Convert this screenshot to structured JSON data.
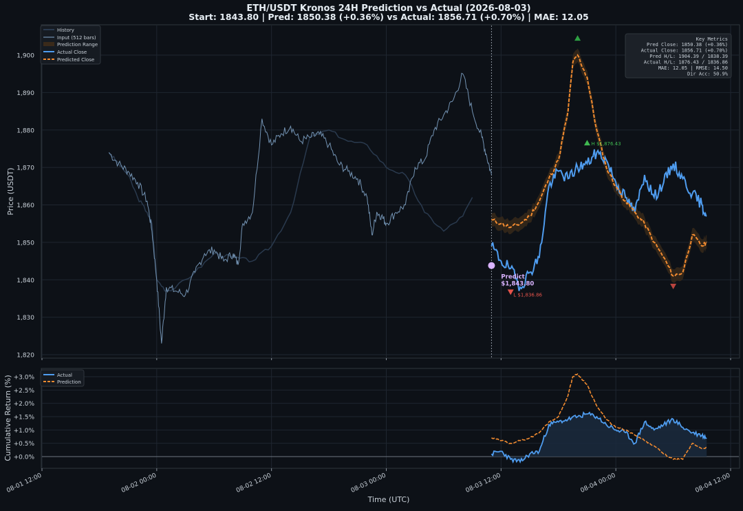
{
  "chart_data": [
    {
      "type": "line",
      "title": "ETH/USDT  Kronos 24H Prediction vs Actual (2026-08-03)",
      "subtitle": "Start: 1843.80  |  Pred: 1850.38 (+0.36%)  vs  Actual: 1856.71 (+0.70%)  |  MAE: 12.05",
      "ylabel": "Price (USDT)",
      "ylim": [
        1819,
        1905
      ],
      "yticks": [
        1820,
        1830,
        1840,
        1850,
        1860,
        1870,
        1880,
        1890,
        1900
      ],
      "ytick_labels": [
        "1,820",
        "1,830",
        "1,840",
        "1,850",
        "1,860",
        "1,870",
        "1,880",
        "1,890",
        "1,900"
      ],
      "grid": true,
      "legend": "top-left",
      "series": [
        {
          "name": "History",
          "color": "#2a3a4e",
          "x": [
            "2026-08-01 19:00",
            "2026-08-01 20:00",
            "2026-08-01 21:00",
            "2026-08-01 22:00",
            "2026-08-01 23:00",
            "2026-08-01 23:30",
            "2026-08-02 00:00",
            "2026-08-02 01:00",
            "2026-08-02 02:00",
            "2026-08-02 04:00",
            "2026-08-02 06:00",
            "2026-08-02 08:00",
            "2026-08-02 10:00",
            "2026-08-02 12:00",
            "2026-08-02 14:00",
            "2026-08-02 16:00",
            "2026-08-02 18:00",
            "2026-08-02 20:00",
            "2026-08-02 22:00",
            "2026-08-03 00:00",
            "2026-08-03 02:00",
            "2026-08-03 04:00",
            "2026-08-03 06:00",
            "2026-08-03 08:00",
            "2026-08-03 09:00"
          ],
          "values": [
            1874,
            1871,
            1868,
            1862,
            1858,
            1855,
            1840,
            1837,
            1838,
            1842,
            1847,
            1846,
            1845,
            1849,
            1858,
            1878,
            1880,
            1877,
            1876,
            1870,
            1868,
            1858,
            1853,
            1857,
            1862
          ]
        },
        {
          "name": "Input (512 bars)",
          "color": "#7393b3",
          "x": [
            "2026-08-01 19:00",
            "2026-08-01 20:00",
            "2026-08-01 21:00",
            "2026-08-01 22:00",
            "2026-08-01 23:00",
            "2026-08-01 23:30",
            "2026-08-02 00:00",
            "2026-08-02 00:30",
            "2026-08-02 01:00",
            "2026-08-02 02:00",
            "2026-08-02 03:00",
            "2026-08-02 04:00",
            "2026-08-02 05:00",
            "2026-08-02 06:00",
            "2026-08-02 07:00",
            "2026-08-02 08:00",
            "2026-08-02 08:30",
            "2026-08-02 09:00",
            "2026-08-02 10:00",
            "2026-08-02 11:00",
            "2026-08-02 12:00",
            "2026-08-02 13:00",
            "2026-08-02 14:00",
            "2026-08-02 15:00",
            "2026-08-02 16:00",
            "2026-08-02 17:00",
            "2026-08-02 18:00",
            "2026-08-02 19:00",
            "2026-08-02 20:00",
            "2026-08-02 21:00",
            "2026-08-02 22:00",
            "2026-08-02 22:30",
            "2026-08-02 23:00",
            "2026-08-02 23:30",
            "2026-08-03 00:00",
            "2026-08-03 01:00",
            "2026-08-03 02:00",
            "2026-08-03 03:00",
            "2026-08-03 04:00",
            "2026-08-03 05:00",
            "2026-08-03 06:00",
            "2026-08-03 07:00",
            "2026-08-03 08:00",
            "2026-08-03 09:00",
            "2026-08-03 10:00",
            "2026-08-03 10:30",
            "2026-08-03 11:00"
          ],
          "values": [
            1874,
            1871,
            1869,
            1866,
            1861,
            1853,
            1840,
            1823,
            1838,
            1837,
            1836,
            1842,
            1847,
            1848,
            1845,
            1847,
            1844,
            1855,
            1858,
            1883,
            1876,
            1879,
            1881,
            1877,
            1878,
            1879,
            1876,
            1871,
            1869,
            1867,
            1862,
            1852,
            1858,
            1857,
            1855,
            1858,
            1860,
            1870,
            1872,
            1880,
            1884,
            1888,
            1895,
            1885,
            1878,
            1873,
            1868
          ]
        },
        {
          "name": "Prediction Range",
          "color": "#3a2a1a"
        },
        {
          "name": "Actual Close",
          "color": "#4f9df0",
          "x": [
            "2026-08-03 11:00",
            "2026-08-03 12:00",
            "2026-08-03 13:00",
            "2026-08-03 14:00",
            "2026-08-03 15:00",
            "2026-08-03 16:00",
            "2026-08-03 17:00",
            "2026-08-03 18:00",
            "2026-08-03 19:00",
            "2026-08-03 20:00",
            "2026-08-03 21:00",
            "2026-08-03 22:00",
            "2026-08-03 23:00",
            "2026-08-04 00:00",
            "2026-08-04 01:00",
            "2026-08-04 02:00",
            "2026-08-04 03:00",
            "2026-08-04 04:00",
            "2026-08-04 05:00",
            "2026-08-04 06:00",
            "2026-08-04 07:00",
            "2026-08-04 08:00",
            "2026-08-04 09:00",
            "2026-08-04 09:30"
          ],
          "values": [
            1849,
            1845,
            1843,
            1838,
            1842,
            1846,
            1865,
            1869,
            1867,
            1870,
            1871,
            1874,
            1872,
            1866,
            1862,
            1858,
            1868,
            1862,
            1866,
            1871,
            1867,
            1863,
            1860,
            1857
          ]
        },
        {
          "name": "Predicted Close",
          "color": "#f28b30",
          "x": [
            "2026-08-03 11:00",
            "2026-08-03 12:00",
            "2026-08-03 13:00",
            "2026-08-03 14:00",
            "2026-08-03 15:00",
            "2026-08-03 16:00",
            "2026-08-03 17:00",
            "2026-08-03 18:00",
            "2026-08-03 19:00",
            "2026-08-03 19:30",
            "2026-08-03 20:00",
            "2026-08-03 21:00",
            "2026-08-03 22:00",
            "2026-08-03 23:00",
            "2026-08-04 00:00",
            "2026-08-04 01:00",
            "2026-08-04 02:00",
            "2026-08-04 03:00",
            "2026-08-04 04:00",
            "2026-08-04 05:00",
            "2026-08-04 06:00",
            "2026-08-04 07:00",
            "2026-08-04 08:00",
            "2026-08-04 09:00",
            "2026-08-04 09:30"
          ],
          "values": [
            1856,
            1855,
            1854,
            1855,
            1857,
            1861,
            1867,
            1872,
            1885,
            1898,
            1900,
            1894,
            1880,
            1870,
            1865,
            1861,
            1858,
            1855,
            1850,
            1846,
            1841,
            1842,
            1852,
            1849,
            1850
          ]
        }
      ],
      "annotations": {
        "predict_point": {
          "x": "2026-08-03 11:00",
          "y": 1843.8,
          "label_line1": "Predict",
          "label_line2": "$1,843.80",
          "color": "#d9b3ff"
        },
        "actual_high": {
          "x": "2026-08-03 21:00",
          "y": 1876.43,
          "label": "H $1,876.43",
          "color": "#3fb950"
        },
        "actual_low": {
          "x": "2026-08-03 13:00",
          "y": 1836.86,
          "label": "L $1,836.86",
          "color": "#e5534b"
        },
        "pred_high": {
          "x": "2026-08-03 20:00",
          "y": 1904.39,
          "color": "#2ea043"
        },
        "pred_low": {
          "x": "2026-08-04 06:00",
          "y": 1838.39,
          "color": "#b8433d"
        },
        "split_x": "2026-08-03 11:00"
      },
      "key_metrics": {
        "title": "Key Metrics",
        "lines": [
          "Pred Close: 1850.38 (+0.36%)",
          "Actual Close: 1856.71 (+0.70%)",
          "Pred H/L: 1904.39 / 1838.39",
          "Actual H/L: 1876.43 / 1836.86",
          "MAE: 12.05  |  RMSE: 14.50",
          "Dir Acc: 50.9%"
        ]
      }
    },
    {
      "type": "line",
      "ylabel": "Cumulative Return (%)",
      "xlabel": "Time (UTC)",
      "ylim": [
        -0.4,
        3.2
      ],
      "yticks": [
        0,
        0.5,
        1.0,
        1.5,
        2.0,
        2.5,
        3.0
      ],
      "ytick_labels": [
        "+0.0%",
        "+0.5%",
        "+1.0%",
        "+1.5%",
        "+2.0%",
        "+2.5%",
        "+3.0%"
      ],
      "xticks": [
        "2026-08-01 12:00",
        "2026-08-02 00:00",
        "2026-08-02 12:00",
        "2026-08-03 00:00",
        "2026-08-03 12:00",
        "2026-08-04 00:00",
        "2026-08-04 12:00"
      ],
      "xtick_labels": [
        "08-01 12:00",
        "08-02 00:00",
        "08-02 12:00",
        "08-03 00:00",
        "08-03 12:00",
        "08-04 00:00",
        "08-04 12:00"
      ],
      "grid": true,
      "legend": "top-left",
      "series": [
        {
          "name": "Actual",
          "color": "#4f9df0",
          "x": [
            "2026-08-03 11:00",
            "2026-08-03 12:00",
            "2026-08-03 13:00",
            "2026-08-03 14:00",
            "2026-08-03 15:00",
            "2026-08-03 16:00",
            "2026-08-03 17:00",
            "2026-08-03 18:00",
            "2026-08-03 19:00",
            "2026-08-03 20:00",
            "2026-08-03 21:00",
            "2026-08-03 22:00",
            "2026-08-03 23:00",
            "2026-08-04 00:00",
            "2026-08-04 01:00",
            "2026-08-04 02:00",
            "2026-08-04 03:00",
            "2026-08-04 04:00",
            "2026-08-04 05:00",
            "2026-08-04 06:00",
            "2026-08-04 07:00",
            "2026-08-04 08:00",
            "2026-08-04 09:00",
            "2026-08-04 09:30"
          ],
          "values": [
            0.1,
            0.2,
            -0.1,
            -0.2,
            0.1,
            0.2,
            1.2,
            1.3,
            1.4,
            1.5,
            1.6,
            1.5,
            1.2,
            1.0,
            0.9,
            0.5,
            1.3,
            1.0,
            1.2,
            1.4,
            1.1,
            0.9,
            0.8,
            0.7
          ]
        },
        {
          "name": "Prediction",
          "color": "#f28b30",
          "x": [
            "2026-08-03 11:00",
            "2026-08-03 12:00",
            "2026-08-03 13:00",
            "2026-08-03 14:00",
            "2026-08-03 15:00",
            "2026-08-03 16:00",
            "2026-08-03 17:00",
            "2026-08-03 18:00",
            "2026-08-03 19:00",
            "2026-08-03 19:30",
            "2026-08-03 20:00",
            "2026-08-03 21:00",
            "2026-08-03 22:00",
            "2026-08-03 23:00",
            "2026-08-04 00:00",
            "2026-08-04 01:00",
            "2026-08-04 02:00",
            "2026-08-04 03:00",
            "2026-08-04 04:00",
            "2026-08-04 05:00",
            "2026-08-04 06:00",
            "2026-08-04 07:00",
            "2026-08-04 08:00",
            "2026-08-04 09:00",
            "2026-08-04 09:30"
          ],
          "values": [
            0.7,
            0.6,
            0.5,
            0.6,
            0.7,
            0.9,
            1.3,
            1.5,
            2.3,
            3.0,
            3.1,
            2.7,
            1.9,
            1.4,
            1.1,
            1.0,
            0.8,
            0.6,
            0.4,
            0.1,
            -0.1,
            -0.1,
            0.5,
            0.3,
            0.35
          ]
        }
      ]
    }
  ]
}
